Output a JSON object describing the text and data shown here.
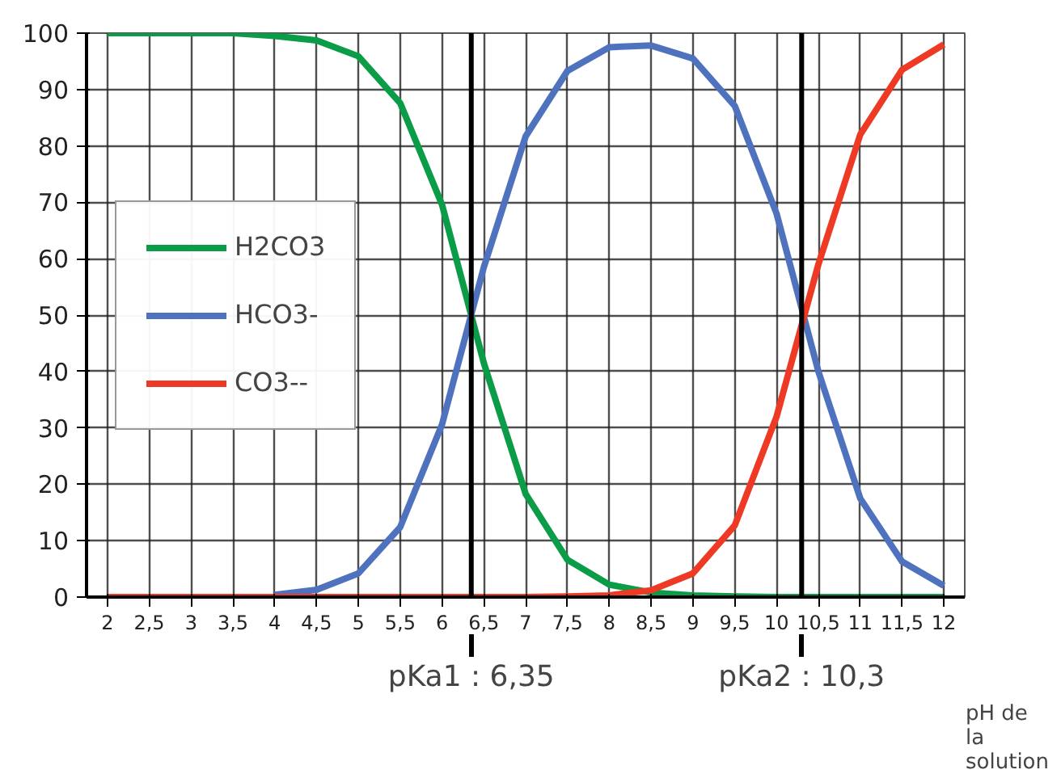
{
  "chart_data": {
    "type": "line",
    "xlabel": "pH de la solution",
    "x": [
      2,
      2.5,
      3,
      3.5,
      4,
      4.5,
      5,
      5.5,
      6,
      6.5,
      7,
      7.5,
      8,
      8.5,
      9,
      9.5,
      10,
      10.5,
      11,
      11.5,
      12
    ],
    "series": [
      {
        "name": "H2CO3",
        "color": "#0a9c46",
        "values": [
          100,
          100,
          100,
          100,
          99.5,
          98.7,
          95.9,
          87.6,
          69.6,
          41.5,
          18.3,
          6.6,
          2.2,
          0.8,
          0.3,
          0.1,
          0,
          0,
          0,
          0,
          0
        ]
      },
      {
        "name": "HCO3-",
        "color": "#4f72be",
        "values": [
          null,
          null,
          null,
          null,
          0.4,
          1.3,
          4.2,
          12.4,
          30.6,
          58.5,
          81.7,
          93.3,
          97.5,
          97.8,
          95.5,
          87.1,
          68,
          40,
          17.5,
          6.3,
          2
        ]
      },
      {
        "name": "CO3--",
        "color": "#ee3a24",
        "values": [
          0,
          0,
          0,
          0,
          0,
          0,
          0,
          0,
          0,
          0,
          0,
          0.1,
          0.3,
          1.2,
          4.2,
          12.7,
          32,
          59,
          82,
          93.5,
          98
        ]
      }
    ],
    "xlim": [
      1.75,
      12.25
    ],
    "ylim": [
      0,
      100
    ],
    "xticks": [
      {
        "value": 2,
        "label": "2"
      },
      {
        "value": 2.5,
        "label": "2,5"
      },
      {
        "value": 3,
        "label": "3"
      },
      {
        "value": 3.5,
        "label": "3,5"
      },
      {
        "value": 4,
        "label": "4"
      },
      {
        "value": 4.5,
        "label": "4,5"
      },
      {
        "value": 5,
        "label": "5"
      },
      {
        "value": 5.5,
        "label": "5,5"
      },
      {
        "value": 6,
        "label": "6"
      },
      {
        "value": 6.5,
        "label": "6,5"
      },
      {
        "value": 7,
        "label": "7"
      },
      {
        "value": 7.5,
        "label": "7,5"
      },
      {
        "value": 8,
        "label": "8"
      },
      {
        "value": 8.5,
        "label": "8,5"
      },
      {
        "value": 9,
        "label": "9"
      },
      {
        "value": 9.5,
        "label": "9,5"
      },
      {
        "value": 10,
        "label": "10"
      },
      {
        "value": 10.5,
        "label": "10,5"
      },
      {
        "value": 11,
        "label": "11"
      },
      {
        "value": 11.5,
        "label": "11,5"
      },
      {
        "value": 12,
        "label": "12"
      }
    ],
    "yticks": [
      0,
      10,
      20,
      30,
      40,
      50,
      60,
      70,
      80,
      90,
      100
    ],
    "ref_lines": [
      {
        "axis": "x",
        "value": 6.35,
        "label": "pKa1 : 6,35"
      },
      {
        "axis": "x",
        "value": 10.3,
        "label": "pKa2 : 10,3"
      }
    ],
    "grid": true,
    "legend": "left",
    "marker": "none",
    "line_style": "solid"
  }
}
